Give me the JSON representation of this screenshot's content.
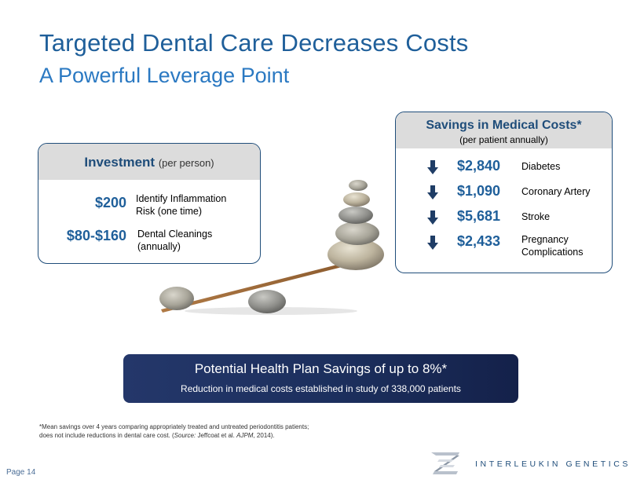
{
  "title": "Targeted Dental Care Decreases Costs",
  "subtitle": "A Powerful Leverage Point",
  "investment": {
    "heading": "Investment",
    "heading_sub": "(per person)",
    "rows": [
      {
        "amount": "$200",
        "desc_line1": "Identify Inflammation",
        "desc_line2": "Risk (one time)"
      },
      {
        "amount": "$80-$160",
        "desc_line1": "Dental Cleanings",
        "desc_line2": "(annually)"
      }
    ]
  },
  "savings": {
    "heading": "Savings in Medical Costs*",
    "heading_sub": "(per patient annually)",
    "arrow_icon": "arrow-down-icon",
    "rows": [
      {
        "amount": "$2,840",
        "condition_line1": "Diabetes",
        "condition_line2": ""
      },
      {
        "amount": "$1,090",
        "condition_line1": "Coronary Artery",
        "condition_line2": ""
      },
      {
        "amount": "$5,681",
        "condition_line1": "Stroke",
        "condition_line2": ""
      },
      {
        "amount": "$2,433",
        "condition_line1": "Pregnancy",
        "condition_line2": "Complications"
      }
    ]
  },
  "banner": {
    "headline": "Potential Health Plan Savings of up to 8%*",
    "subline": "Reduction in medical costs established in study of 338,000 patients"
  },
  "footnote": {
    "line1": "*Mean savings over 4 years comparing appropriately treated and untreated periodontitis patients;",
    "line2_pre": " does not include reductions in dental care cost. (",
    "source_label": "Source:",
    "line2_mid": " Jeffcoat et al. ",
    "journal": "AJPM",
    "line2_post": ", 2014)."
  },
  "page": {
    "label": "Page",
    "number": "14"
  },
  "company": "INTERLEUKIN GENETICS",
  "colors": {
    "title": "#1f5f9a",
    "accent": "#2b79c2",
    "banner": "#1c2f5d",
    "header_gray": "#dcdcdc"
  }
}
